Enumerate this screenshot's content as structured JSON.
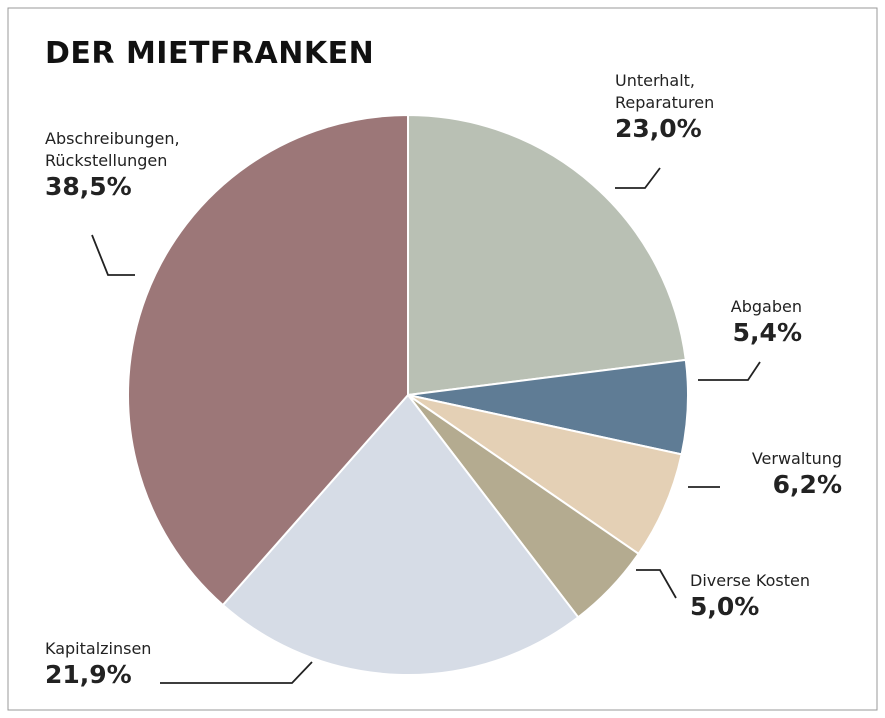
{
  "chart_data": {
    "type": "pie",
    "title": "DER MIETFRANKEN",
    "categories": [
      "Unterhalt,\nReparaturen",
      "Abgaben",
      "Verwaltung",
      "Diverse Kosten",
      "Kapitalzinsen",
      "Abschreibungen,\nRückstellungen"
    ],
    "values": [
      23.0,
      5.4,
      6.2,
      5.0,
      21.9,
      38.5
    ],
    "value_labels": [
      "23,0%",
      "5,4%",
      "6,2%",
      "5,0%",
      "21,9%",
      "38,5%"
    ],
    "colors": [
      "#b9c0b4",
      "#5f7c95",
      "#e4d0b5",
      "#b4ab90",
      "#d6dce6",
      "#9c7778"
    ]
  }
}
